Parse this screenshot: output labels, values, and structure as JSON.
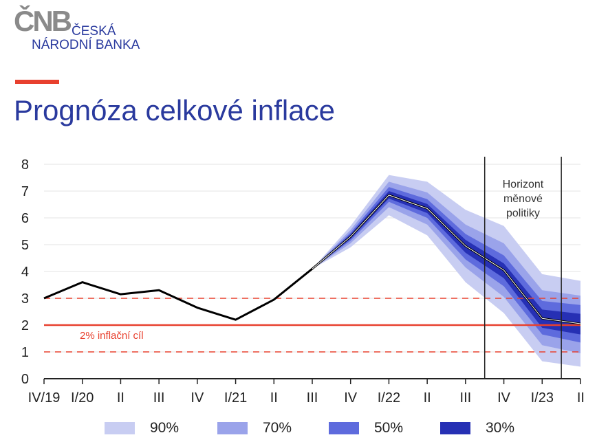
{
  "logo": {
    "mark": "ČNB",
    "line1": "ČESKÁ",
    "line2": "NÁRODNÍ BANKA"
  },
  "page": {
    "title": "Prognóza celkové inflace"
  },
  "colors": {
    "brand_blue": "#2a3a9e",
    "accent_red": "#e8402e",
    "band_90": "#c8cdf2",
    "band_70": "#9aa3ea",
    "band_50": "#5e6bdd",
    "band_30": "#2630b4",
    "line": "#000000",
    "target": "#e8402e"
  },
  "chart_data": {
    "type": "line",
    "categories": [
      "IV/19",
      "I/20",
      "II",
      "III",
      "IV",
      "I/21",
      "II",
      "III",
      "IV",
      "I/22",
      "II",
      "III",
      "IV",
      "I/23",
      "II"
    ],
    "ylim": [
      0,
      8
    ],
    "yticks": [
      0,
      1,
      2,
      3,
      4,
      5,
      6,
      7,
      8
    ],
    "grid": true,
    "series": [
      {
        "values": [
          3.0,
          3.6,
          3.15,
          3.3,
          2.65,
          2.2,
          2.95,
          4.1,
          5.3,
          6.85,
          6.35,
          4.95,
          4.05,
          2.25,
          2.05
        ]
      }
    ],
    "fan": {
      "start_index": 7,
      "center": [
        4.1,
        5.3,
        6.85,
        6.35,
        4.95,
        4.05,
        2.25,
        2.05
      ],
      "bands": [
        {
          "name": "90%",
          "lower": [
            4.1,
            4.9,
            6.1,
            5.35,
            3.6,
            2.45,
            0.65,
            0.45
          ],
          "upper": [
            4.1,
            5.7,
            7.6,
            7.35,
            6.3,
            5.7,
            3.9,
            3.65
          ]
        },
        {
          "name": "70%",
          "lower": [
            4.1,
            5.05,
            6.4,
            5.75,
            4.15,
            3.05,
            1.25,
            0.95
          ],
          "upper": [
            4.1,
            5.55,
            7.35,
            6.95,
            5.75,
            5.05,
            3.3,
            3.1
          ]
        },
        {
          "name": "50%",
          "lower": [
            4.1,
            5.15,
            6.6,
            6.0,
            4.45,
            3.45,
            1.65,
            1.35
          ],
          "upper": [
            4.1,
            5.45,
            7.15,
            6.7,
            5.4,
            4.6,
            2.9,
            2.75
          ]
        },
        {
          "name": "30%",
          "lower": [
            4.1,
            5.22,
            6.72,
            6.18,
            4.7,
            3.75,
            1.9,
            1.65
          ],
          "upper": [
            4.1,
            5.38,
            7.0,
            6.52,
            5.18,
            4.3,
            2.58,
            2.42
          ]
        }
      ]
    },
    "target": {
      "value": 2,
      "label": "2% inflační cíl",
      "band": [
        1,
        3
      ]
    },
    "horizon": {
      "from": 11.5,
      "to": 13.5,
      "label_lines": [
        "Horizont",
        "měnové",
        "politiky"
      ]
    },
    "legend": [
      "90%",
      "70%",
      "50%",
      "30%"
    ],
    "legend_position": "bottom"
  }
}
